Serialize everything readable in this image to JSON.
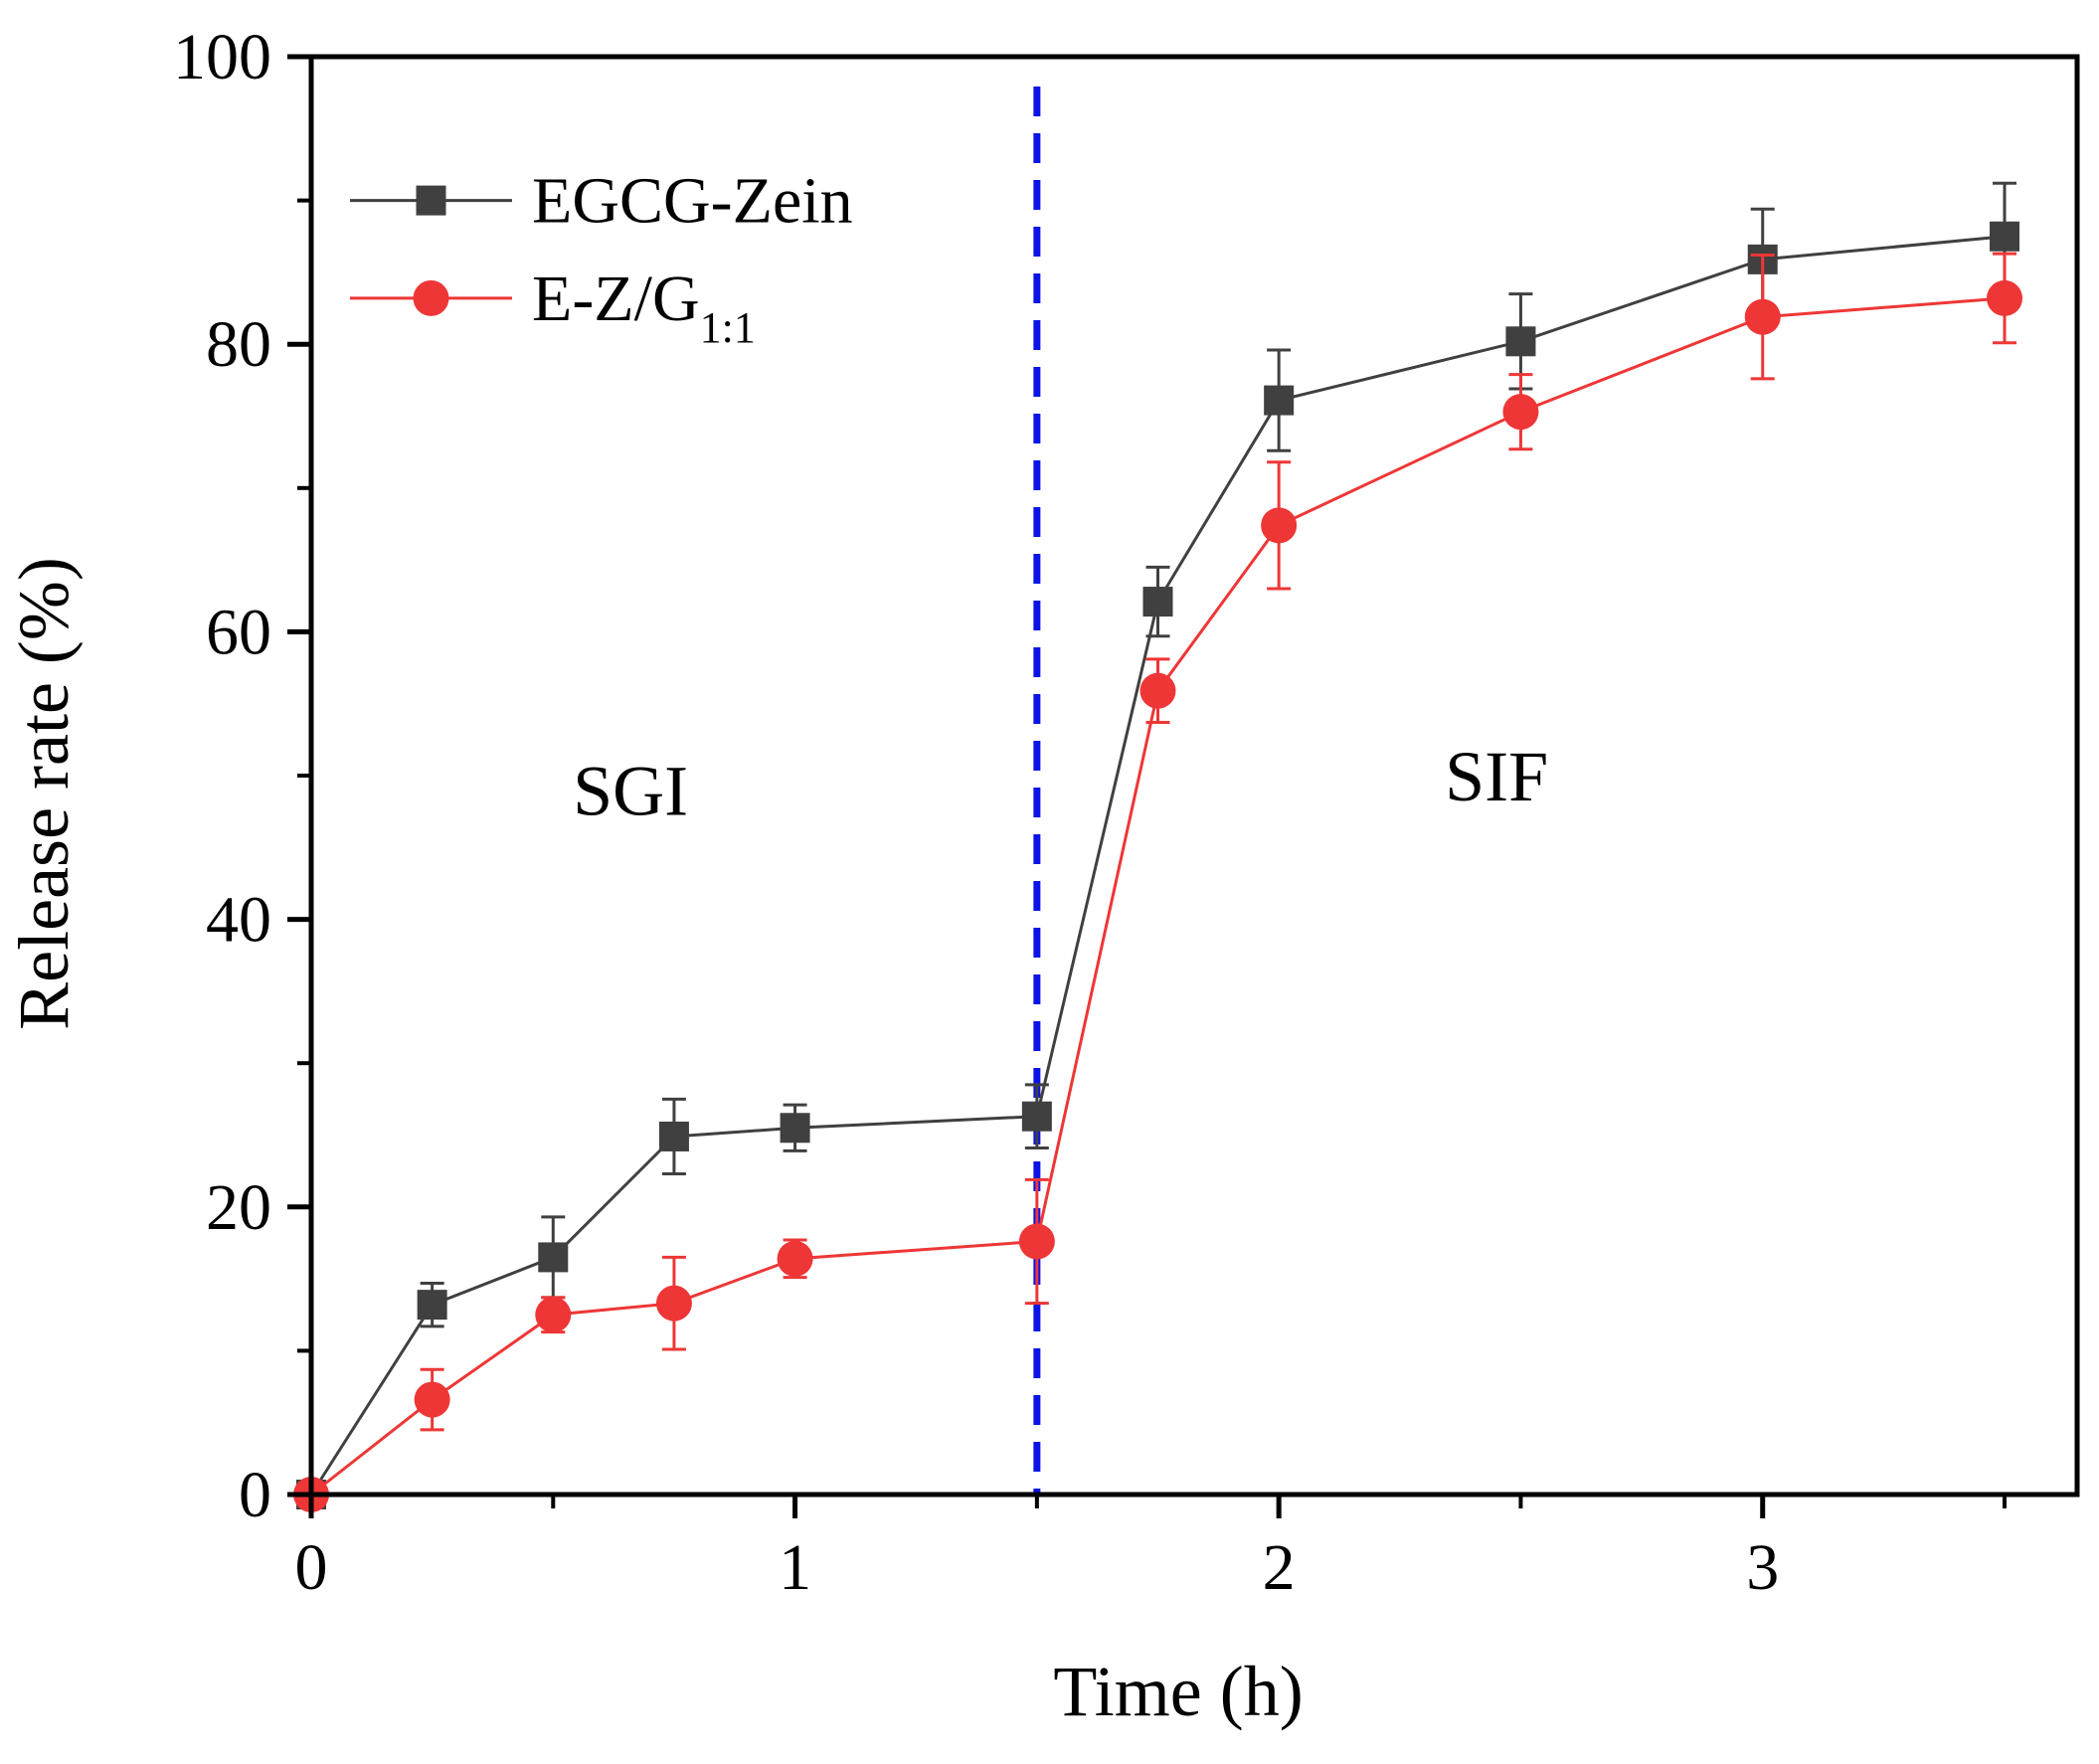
{
  "chart_data": {
    "type": "line",
    "xlabel": "Time (h)",
    "ylabel": "Release rate (%)",
    "xlim": [
      0,
      3.65
    ],
    "ylim": [
      0,
      100
    ],
    "xticks": [
      0,
      1,
      2,
      3
    ],
    "yticks": [
      0,
      20,
      40,
      60,
      80,
      100
    ],
    "xtick_labels": [
      "0",
      "1",
      "2",
      "3"
    ],
    "ytick_labels": [
      "0",
      "20",
      "40",
      "60",
      "80",
      "100"
    ],
    "x_minor_ticks": [
      0.5,
      1.5,
      2.5,
      3.5
    ],
    "y_minor_ticks": [
      10,
      30,
      50,
      70,
      90
    ],
    "grid": false,
    "legend_position": "top-left",
    "series": [
      {
        "name": "EGCG-Zein",
        "legend_main": "EGCG-Zein",
        "legend_sub": "",
        "color": "#404040",
        "marker": "square",
        "x": [
          0,
          0.25,
          0.5,
          0.75,
          1,
          1.5,
          1.75,
          2,
          2.5,
          3,
          3.5
        ],
        "y": [
          0,
          13.2,
          16.5,
          24.9,
          25.5,
          26.3,
          62.1,
          76.1,
          80.2,
          85.9,
          87.5
        ],
        "err": [
          0,
          1.5,
          2.8,
          2.6,
          1.6,
          2.2,
          2.4,
          3.5,
          3.3,
          3.5,
          3.7
        ]
      },
      {
        "name": "E-Z/G1:1",
        "legend_main": "E-Z/G",
        "legend_sub": "1:1",
        "color": "#ee3636",
        "marker": "circle",
        "x": [
          0,
          0.25,
          0.5,
          0.75,
          1,
          1.5,
          1.75,
          2,
          2.5,
          3,
          3.5
        ],
        "y": [
          0,
          6.6,
          12.5,
          13.3,
          16.4,
          17.6,
          55.9,
          67.4,
          75.3,
          81.9,
          83.2
        ],
        "err": [
          0,
          2.1,
          1.2,
          3.2,
          1.3,
          4.3,
          2.2,
          4.4,
          2.6,
          4.3,
          3.1
        ]
      }
    ],
    "annotations": [
      {
        "text": "SGI",
        "x": 0.66,
        "y": 49
      },
      {
        "text": "SIF",
        "x": 2.45,
        "y": 50
      }
    ],
    "vline": {
      "x": 1.5,
      "color": "#0a14e6",
      "style": "dashed"
    }
  }
}
